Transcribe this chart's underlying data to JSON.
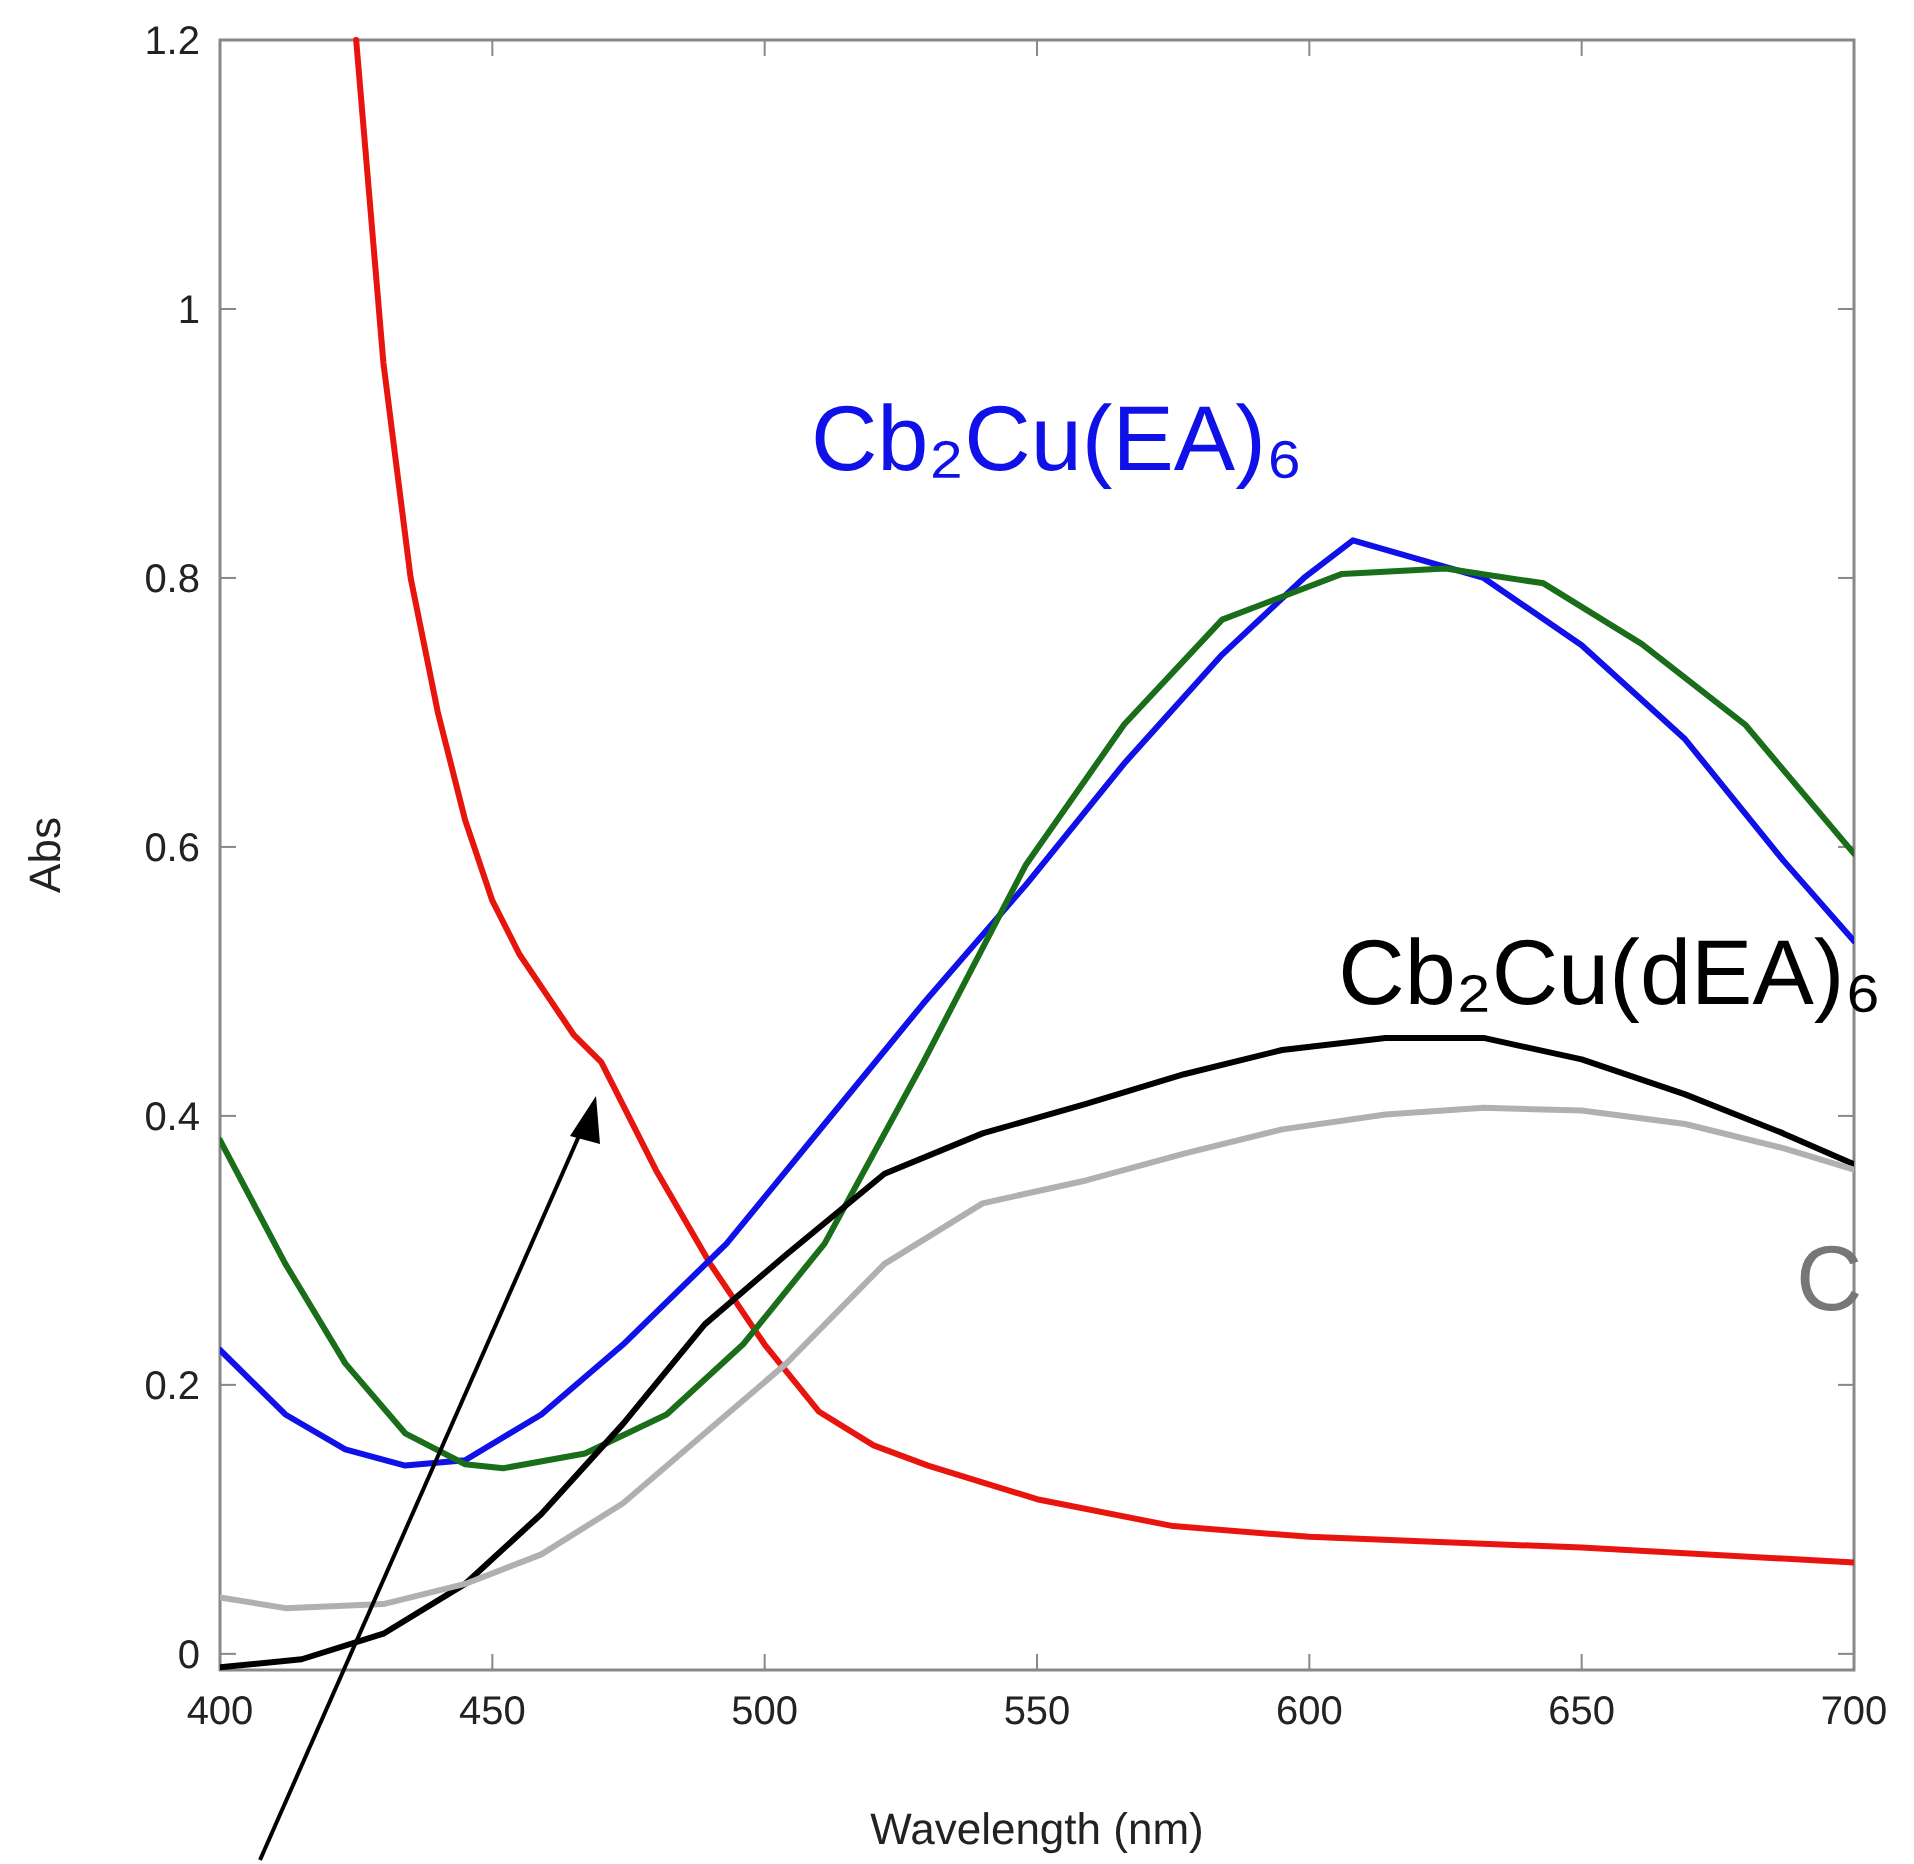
{
  "chart_data": {
    "type": "line",
    "xlabel": "Wavelength (nm)",
    "ylabel": "Abs",
    "xlim": [
      400,
      700
    ],
    "ylim": [
      -0.012,
      1.2
    ],
    "xticks": [
      400,
      450,
      500,
      550,
      600,
      650,
      700
    ],
    "yticks": [
      0,
      0.2,
      0.4,
      0.6,
      0.8,
      1,
      1.2
    ],
    "grid": false,
    "line_style": "solid",
    "annotations": [
      "C"
    ],
    "series": [
      {
        "color": "#e8150f",
        "x": [
          425,
          430,
          435,
          440,
          445,
          450,
          455,
          460,
          465,
          470,
          475,
          480,
          490,
          500,
          510,
          520,
          530,
          550,
          575,
          600,
          650,
          700
        ],
        "values": [
          1.2,
          0.96,
          0.8,
          0.7,
          0.62,
          0.56,
          0.52,
          0.49,
          0.46,
          0.44,
          0.4,
          0.36,
          0.29,
          0.23,
          0.18,
          0.155,
          0.14,
          0.115,
          0.095,
          0.087,
          0.079,
          0.068
        ]
      },
      {
        "name": "Cb₂Cu(EA)₆",
        "color": "#1010e8",
        "x": [
          400,
          412,
          423,
          434,
          445,
          459,
          474,
          493,
          511,
          529,
          548,
          566,
          584,
          599,
          608,
          632,
          650,
          669,
          687,
          700
        ],
        "values": [
          0.226,
          0.178,
          0.152,
          0.14,
          0.144,
          0.178,
          0.23,
          0.305,
          0.394,
          0.483,
          0.572,
          0.662,
          0.743,
          0.8,
          0.828,
          0.8,
          0.75,
          0.68,
          0.59,
          0.53
        ]
      },
      {
        "color": "#1a6e1a",
        "x": [
          400,
          412,
          423,
          434,
          445,
          452,
          467,
          482,
          496,
          511,
          529,
          548,
          566,
          584,
          606,
          625,
          643,
          661,
          680,
          700
        ],
        "values": [
          0.382,
          0.29,
          0.216,
          0.164,
          0.141,
          0.138,
          0.149,
          0.178,
          0.23,
          0.305,
          0.439,
          0.587,
          0.691,
          0.769,
          0.803,
          0.807,
          0.796,
          0.751,
          0.691,
          0.595
        ]
      },
      {
        "name": "Cb₂Cu(dEA)₆",
        "color": "#000000",
        "x": [
          400,
          415,
          430,
          445,
          459,
          474,
          489,
          504,
          522,
          540,
          559,
          577,
          595,
          614,
          632,
          650,
          669,
          687,
          700
        ],
        "values": [
          -0.01,
          -0.004,
          0.015,
          0.052,
          0.104,
          0.171,
          0.245,
          0.297,
          0.357,
          0.387,
          0.409,
          0.431,
          0.449,
          0.458,
          0.458,
          0.442,
          0.416,
          0.387,
          0.364
        ]
      },
      {
        "color": "#b0b0b0",
        "x": [
          400,
          412,
          430,
          445,
          459,
          474,
          489,
          504,
          522,
          540,
          559,
          577,
          595,
          614,
          632,
          650,
          669,
          687,
          700
        ],
        "values": [
          0.042,
          0.034,
          0.037,
          0.052,
          0.074,
          0.112,
          0.164,
          0.216,
          0.29,
          0.335,
          0.352,
          0.372,
          0.39,
          0.401,
          0.406,
          0.404,
          0.394,
          0.376,
          0.36
        ]
      }
    ]
  }
}
